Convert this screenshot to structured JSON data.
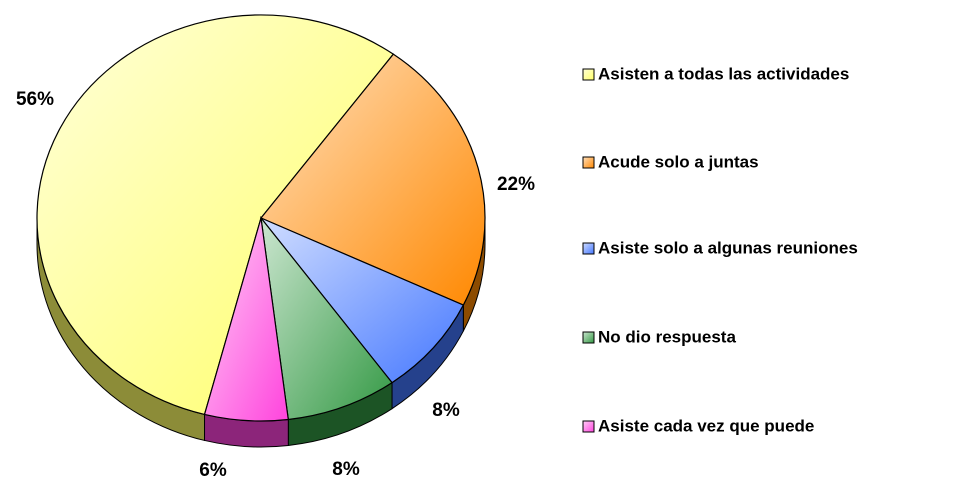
{
  "chart_data": {
    "type": "pie",
    "categories": [
      "Asisten a todas las actividades",
      "Acude solo a juntas",
      "Asiste solo a algunas reuniones",
      "No dio respuesta",
      "Asiste cada vez que puede"
    ],
    "values": [
      56,
      22,
      8,
      8,
      6
    ],
    "value_labels": [
      "56%",
      "22%",
      "8%",
      "8%",
      "6%"
    ],
    "colors": [
      "#ffff66",
      "#ff8800",
      "#4477ff",
      "#339944",
      "#ff44dd"
    ],
    "legend": "right"
  }
}
